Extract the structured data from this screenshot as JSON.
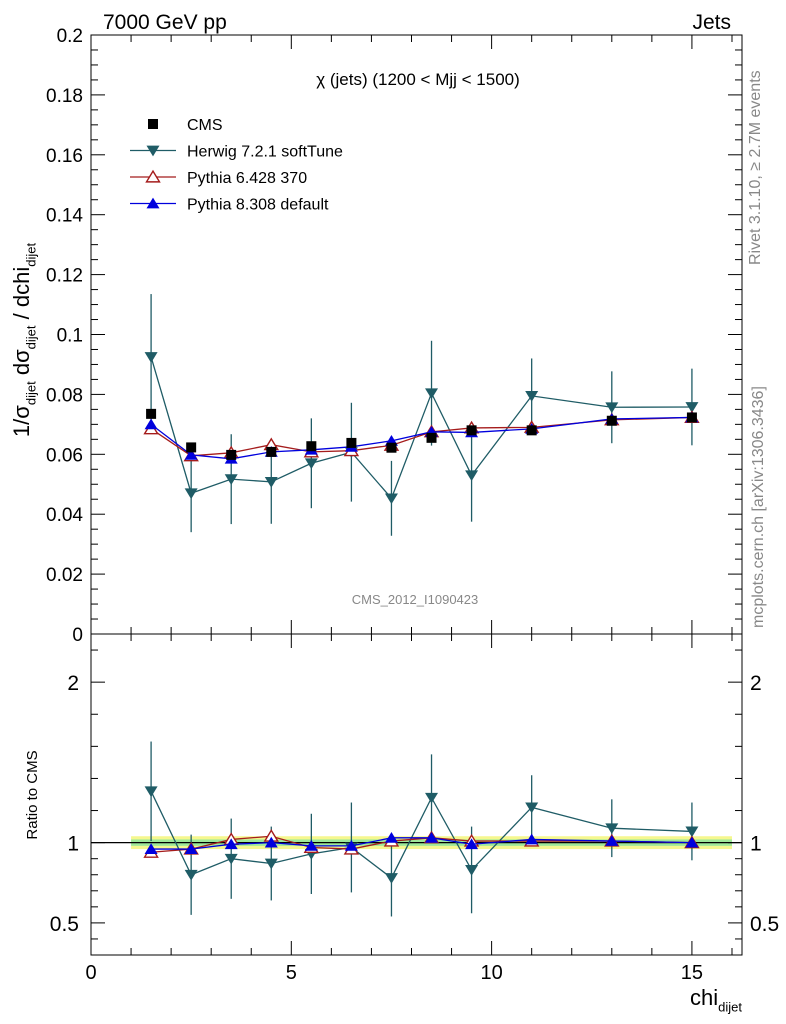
{
  "header": {
    "left": "7000 GeV pp",
    "right": "Jets",
    "side_top": "Rivet 3.1.10, ≥ 2.7M events",
    "side_bottom": "mcplots.cern.ch [arXiv:1306.3436]"
  },
  "chart_data": [
    {
      "type": "line",
      "title": "χ (jets) (1200 < Mjj < 1500)",
      "watermark": "CMS_2012_I1090423",
      "ylabel_parts": [
        "1/σ",
        "dijet",
        " dσ",
        "dijet",
        " / dchi",
        "dijet"
      ],
      "ylim": [
        0,
        0.2
      ],
      "xlim": [
        0,
        16.25
      ],
      "y_ticks": [
        0,
        0.02,
        0.04,
        0.06,
        0.08,
        0.1,
        0.12,
        0.14,
        0.16,
        0.18,
        0.2
      ],
      "y_tick_labels": [
        "0",
        "0.02",
        "0.04",
        "0.06",
        "0.08",
        "0.1",
        "0.12",
        "0.14",
        "0.16",
        "0.18",
        "0.2"
      ],
      "legend_position": "top-left",
      "series": [
        {
          "name": "CMS",
          "color": "#000000",
          "marker": "square",
          "x": [
            1.5,
            2.5,
            3.5,
            4.5,
            5.5,
            6.5,
            7.5,
            8.5,
            9.5,
            11,
            13,
            15
          ],
          "y": [
            0.0735,
            0.0623,
            0.0598,
            0.0608,
            0.0627,
            0.0638,
            0.0622,
            0.0655,
            0.068,
            0.068,
            0.0712,
            0.0723
          ]
        },
        {
          "name": "Herwig 7.2.1 softTune",
          "color": "#1f5c66",
          "marker": "triangle-down",
          "x": [
            1.5,
            2.5,
            3.5,
            4.5,
            5.5,
            6.5,
            7.5,
            8.5,
            9.5,
            11,
            13,
            15
          ],
          "y": [
            0.0925,
            0.047,
            0.0517,
            0.0508,
            0.057,
            0.0607,
            0.0453,
            0.0804,
            0.053,
            0.0795,
            0.0757,
            0.0758
          ],
          "err": [
            0.021,
            0.013,
            0.015,
            0.014,
            0.015,
            0.0165,
            0.0125,
            0.0175,
            0.0155,
            0.0125,
            0.012,
            0.0128
          ]
        },
        {
          "name": "Pythia 6.428 370",
          "color": "#a51c1c",
          "marker": "triangle-up-open",
          "x": [
            1.5,
            2.5,
            3.5,
            4.5,
            5.5,
            6.5,
            7.5,
            8.5,
            9.5,
            11,
            13,
            15
          ],
          "y": [
            0.0685,
            0.0595,
            0.0605,
            0.0632,
            0.0608,
            0.0612,
            0.063,
            0.0675,
            0.0688,
            0.069,
            0.0715,
            0.0723
          ]
        },
        {
          "name": "Pythia 8.308 default",
          "color": "#0000dd",
          "marker": "triangle-up",
          "x": [
            1.5,
            2.5,
            3.5,
            4.5,
            5.5,
            6.5,
            7.5,
            8.5,
            9.5,
            11,
            13,
            15
          ],
          "y": [
            0.07,
            0.0598,
            0.0585,
            0.0608,
            0.0615,
            0.0625,
            0.0645,
            0.0675,
            0.0673,
            0.0685,
            0.0718,
            0.0723
          ],
          "err": [
            0.0015,
            0.001,
            0.0012,
            0.0012,
            0.0012,
            0.0012,
            0.0015,
            0.0013,
            0.0012,
            0.001,
            0.001,
            0.001
          ]
        }
      ]
    },
    {
      "type": "line",
      "ylabel": "Ratio to CMS",
      "xlabel_parts": [
        "chi",
        "dijet"
      ],
      "ylim": [
        0.3,
        2.3
      ],
      "xlim": [
        0,
        16.25
      ],
      "x_ticks": [
        0,
        5,
        10,
        15
      ],
      "x_tick_labels": [
        "0",
        "5",
        "10",
        "15"
      ],
      "y_ticks": [
        0.5,
        1,
        2
      ],
      "y_tick_labels": [
        "0.5",
        "1",
        "2"
      ],
      "band": {
        "inner": [
          0.98,
          1.02
        ],
        "outer": [
          0.96,
          1.04
        ],
        "x": [
          1,
          16
        ]
      },
      "series": [
        {
          "name": "Herwig 7.2.1 softTune",
          "color": "#1f5c66",
          "x": [
            1.5,
            2.5,
            3.5,
            4.5,
            5.5,
            6.5,
            7.5,
            8.5,
            9.5,
            11,
            13,
            15
          ],
          "y": [
            1.32,
            0.8,
            0.9,
            0.87,
            0.93,
            0.97,
            0.78,
            1.28,
            0.83,
            1.22,
            1.09,
            1.07
          ],
          "err": [
            0.31,
            0.25,
            0.25,
            0.23,
            0.25,
            0.28,
            0.24,
            0.27,
            0.27,
            0.2,
            0.18,
            0.18
          ]
        },
        {
          "name": "Pythia 6.428 370",
          "color": "#a51c1c",
          "x": [
            1.5,
            2.5,
            3.5,
            4.5,
            5.5,
            6.5,
            7.5,
            8.5,
            9.5,
            11,
            13,
            15
          ],
          "y": [
            0.94,
            0.96,
            1.02,
            1.04,
            0.97,
            0.96,
            1.01,
            1.03,
            1.01,
            1.01,
            1.01,
            1.0
          ]
        },
        {
          "name": "Pythia 8.308 default",
          "color": "#0000dd",
          "x": [
            1.5,
            2.5,
            3.5,
            4.5,
            5.5,
            6.5,
            7.5,
            8.5,
            9.5,
            11,
            13,
            15
          ],
          "y": [
            0.96,
            0.96,
            0.99,
            1.0,
            0.98,
            0.98,
            1.03,
            1.03,
            0.99,
            1.02,
            1.01,
            1.0
          ]
        }
      ]
    }
  ]
}
